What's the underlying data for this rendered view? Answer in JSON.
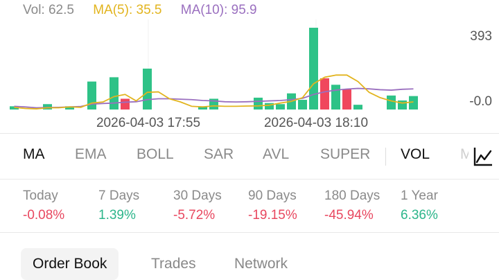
{
  "legend": {
    "vol": "Vol: 62.5",
    "ma5": "MA(5): 35.5",
    "ma10": "MA(10): 95.9"
  },
  "axis": {
    "top_label": "393",
    "bottom_label": "-0.0"
  },
  "x_ticks": [
    "2026-04-03 17:55",
    "2026-04-03 18:10"
  ],
  "colors": {
    "up": "#2ec287",
    "down": "#f0475d",
    "ma5": "#e2b41e",
    "ma10": "#9a6fbf"
  },
  "chart_data": {
    "type": "bar",
    "ylim": [
      0,
      393
    ],
    "bars": [
      {
        "v": 15,
        "c": "up"
      },
      {
        "v": 0,
        "c": "up"
      },
      {
        "v": 0,
        "c": "up"
      },
      {
        "v": 25,
        "c": "up"
      },
      {
        "v": 0,
        "c": "up"
      },
      {
        "v": 15,
        "c": "up"
      },
      {
        "v": 0,
        "c": "up"
      },
      {
        "v": 130,
        "c": "up"
      },
      {
        "v": 0,
        "c": "up"
      },
      {
        "v": 150,
        "c": "up"
      },
      {
        "v": 50,
        "c": "down"
      },
      {
        "v": 0,
        "c": "up"
      },
      {
        "v": 190,
        "c": "up"
      },
      {
        "v": 0,
        "c": "up"
      },
      {
        "v": 0,
        "c": "up"
      },
      {
        "v": 0,
        "c": "up"
      },
      {
        "v": 0,
        "c": "up"
      },
      {
        "v": 15,
        "c": "up"
      },
      {
        "v": 50,
        "c": "up"
      },
      {
        "v": 0,
        "c": "up"
      },
      {
        "v": 0,
        "c": "up"
      },
      {
        "v": 0,
        "c": "up"
      },
      {
        "v": 55,
        "c": "up"
      },
      {
        "v": 30,
        "c": "up"
      },
      {
        "v": 25,
        "c": "up"
      },
      {
        "v": 75,
        "c": "up"
      },
      {
        "v": 45,
        "c": "up"
      },
      {
        "v": 380,
        "c": "up"
      },
      {
        "v": 145,
        "c": "down"
      },
      {
        "v": 115,
        "c": "up"
      },
      {
        "v": 95,
        "c": "down"
      },
      {
        "v": 22,
        "c": "up"
      },
      {
        "v": 0,
        "c": "up"
      },
      {
        "v": 0,
        "c": "up"
      },
      {
        "v": 65,
        "c": "up"
      },
      {
        "v": 42,
        "c": "up"
      },
      {
        "v": 62.5,
        "c": "up"
      }
    ],
    "ma5": [
      10,
      5,
      3,
      8,
      8,
      12,
      10,
      30,
      35,
      60,
      70,
      40,
      80,
      82,
      50,
      35,
      15,
      12,
      17,
      15,
      15,
      16,
      17,
      20,
      30,
      38,
      55,
      120,
      150,
      160,
      160,
      130,
      80,
      55,
      40,
      30,
      35.5
    ],
    "ma10": [
      15,
      12,
      8,
      9,
      10,
      12,
      14,
      25,
      28,
      30,
      34,
      36,
      46,
      50,
      50,
      48,
      46,
      42,
      40,
      36,
      35,
      36,
      38,
      40,
      42,
      46,
      52,
      70,
      82,
      90,
      95,
      98,
      96,
      92,
      90,
      94,
      95.9
    ]
  },
  "indicators": [
    "MA",
    "EMA",
    "BOLL",
    "SAR",
    "AVL",
    "SUPER",
    "VOL"
  ],
  "indicator_cut": "M",
  "periods": [
    {
      "label": "Today",
      "value": "-0.08%",
      "sign": "neg"
    },
    {
      "label": "7 Days",
      "value": "1.39%",
      "sign": "pos"
    },
    {
      "label": "30 Days",
      "value": "-5.72%",
      "sign": "neg"
    },
    {
      "label": "90 Days",
      "value": "-19.15%",
      "sign": "neg"
    },
    {
      "label": "180 Days",
      "value": "-45.94%",
      "sign": "neg"
    },
    {
      "label": "1 Year",
      "value": "6.36%",
      "sign": "pos"
    }
  ],
  "tabs": [
    "Order Book",
    "Trades",
    "Network"
  ]
}
